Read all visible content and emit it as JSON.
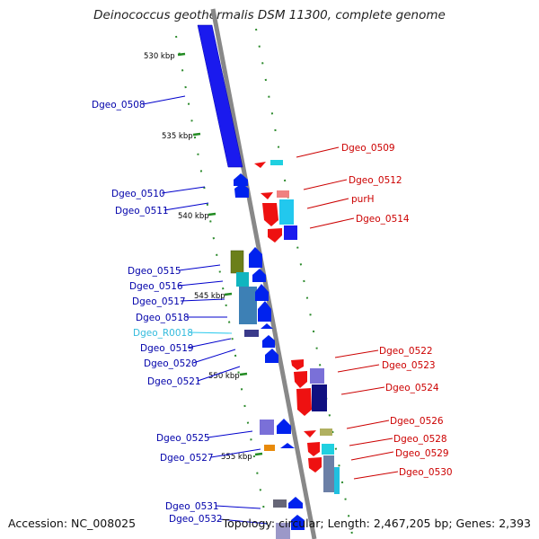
{
  "title": "Deinococcus geothermalis DSM 11300, complete genome",
  "footer": {
    "accession": "Accession: NC_008025",
    "stats": "Topology: circular; Length: 2,467,205 bp; Genes: 2,393"
  },
  "colors": {
    "forward": "#0000ee",
    "reverse": "#ee0000",
    "rna": "#33ccee",
    "ticks": "#228b22",
    "backbone": "#888888"
  },
  "kbp_marks": [
    "530 kbp",
    "535 kbp",
    "540 kbp",
    "545 kbp",
    "550 kbp",
    "555 kbp"
  ],
  "left_labels": [
    "Dgeo_0508",
    "Dgeo_0510",
    "Dgeo_0511",
    "Dgeo_0515",
    "Dgeo_0516",
    "Dgeo_0517",
    "Dgeo_0518",
    "Dgeo_R0018",
    "Dgeo_0519",
    "Dgeo_0520",
    "Dgeo_0521",
    "Dgeo_0525",
    "Dgeo_0527",
    "Dgeo_0531",
    "Dgeo_0532"
  ],
  "right_labels": [
    "Dgeo_0509",
    "Dgeo_0512",
    "purH",
    "Dgeo_0514",
    "Dgeo_0522",
    "Dgeo_0523",
    "Dgeo_0524",
    "Dgeo_0526",
    "Dgeo_0528",
    "Dgeo_0529",
    "Dgeo_0530"
  ]
}
